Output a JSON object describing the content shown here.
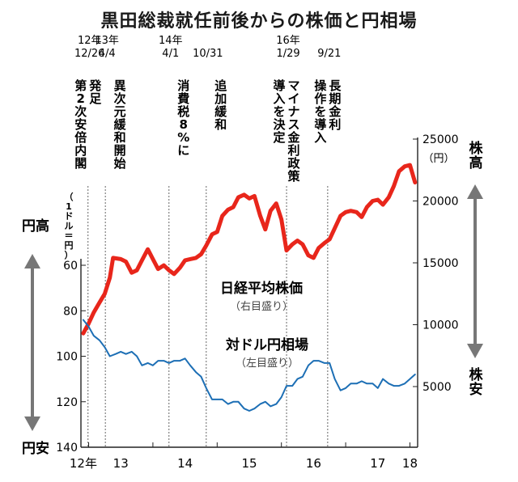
{
  "chart_data": {
    "type": "line",
    "title": "黒田総裁就任前後からの株価と円相場",
    "x_tick_labels": [
      "12年",
      "13",
      "14",
      "15",
      "16",
      "17",
      "18"
    ],
    "x_tick_values": [
      2012.917,
      2013.5,
      2014.5,
      2015.5,
      2016.5,
      2017.5,
      2018.0
    ],
    "left_axis": {
      "unit_label": "（1ドル＝円）",
      "ticks": [
        "60",
        "80",
        "100",
        "120",
        "140"
      ],
      "ylim": [
        140,
        40
      ],
      "top_label": "円高",
      "bottom_label": "円安"
    },
    "right_axis": {
      "unit_label": "（円）",
      "ticks": [
        "5000",
        "10000",
        "15000",
        "20000",
        "25000"
      ],
      "ylim": [
        5000,
        25000
      ],
      "top_label": "株高",
      "bottom_label": "株安"
    },
    "series": [
      {
        "name": "日経平均株価",
        "note": "（右目盛り）",
        "axis": "right",
        "color": "#e8261b",
        "points": [
          [
            2012.917,
            9300
          ],
          [
            2013.0,
            10100
          ],
          [
            2013.08,
            11000
          ],
          [
            2013.17,
            11800
          ],
          [
            2013.25,
            12500
          ],
          [
            2013.33,
            13800
          ],
          [
            2013.38,
            15400
          ],
          [
            2013.5,
            15300
          ],
          [
            2013.58,
            15100
          ],
          [
            2013.67,
            14200
          ],
          [
            2013.75,
            14400
          ],
          [
            2013.83,
            15200
          ],
          [
            2013.92,
            16100
          ],
          [
            2014.0,
            15300
          ],
          [
            2014.08,
            14500
          ],
          [
            2014.17,
            14800
          ],
          [
            2014.25,
            14400
          ],
          [
            2014.33,
            14100
          ],
          [
            2014.42,
            14600
          ],
          [
            2014.5,
            15200
          ],
          [
            2014.58,
            15300
          ],
          [
            2014.67,
            15400
          ],
          [
            2014.75,
            15700
          ],
          [
            2014.83,
            16400
          ],
          [
            2014.92,
            17300
          ],
          [
            2015.0,
            17500
          ],
          [
            2015.08,
            18800
          ],
          [
            2015.17,
            19300
          ],
          [
            2015.25,
            19500
          ],
          [
            2015.33,
            20300
          ],
          [
            2015.42,
            20500
          ],
          [
            2015.5,
            20200
          ],
          [
            2015.58,
            20400
          ],
          [
            2015.67,
            18800
          ],
          [
            2015.75,
            17700
          ],
          [
            2015.83,
            19200
          ],
          [
            2015.92,
            19800
          ],
          [
            2016.0,
            18500
          ],
          [
            2016.08,
            16000
          ],
          [
            2016.17,
            16500
          ],
          [
            2016.25,
            16800
          ],
          [
            2016.33,
            16500
          ],
          [
            2016.42,
            15600
          ],
          [
            2016.5,
            15400
          ],
          [
            2016.58,
            16200
          ],
          [
            2016.67,
            16600
          ],
          [
            2016.75,
            16900
          ],
          [
            2016.83,
            17800
          ],
          [
            2016.92,
            18800
          ],
          [
            2017.0,
            19100
          ],
          [
            2017.08,
            19200
          ],
          [
            2017.17,
            19100
          ],
          [
            2017.25,
            18700
          ],
          [
            2017.33,
            19500
          ],
          [
            2017.42,
            20000
          ],
          [
            2017.5,
            20100
          ],
          [
            2017.58,
            19700
          ],
          [
            2017.67,
            20300
          ],
          [
            2017.75,
            21200
          ],
          [
            2017.83,
            22400
          ],
          [
            2017.92,
            22800
          ],
          [
            2018.0,
            22900
          ],
          [
            2018.08,
            21500
          ]
        ]
      },
      {
        "name": "対ドル円相場",
        "note": "（左目盛り）",
        "axis": "left",
        "color": "#1d6fb5",
        "points": [
          [
            2012.917,
            84
          ],
          [
            2013.0,
            87
          ],
          [
            2013.08,
            91
          ],
          [
            2013.17,
            93
          ],
          [
            2013.25,
            96
          ],
          [
            2013.33,
            100
          ],
          [
            2013.42,
            99
          ],
          [
            2013.5,
            98
          ],
          [
            2013.58,
            99
          ],
          [
            2013.67,
            98
          ],
          [
            2013.75,
            100
          ],
          [
            2013.83,
            104
          ],
          [
            2013.92,
            103
          ],
          [
            2014.0,
            104
          ],
          [
            2014.08,
            102
          ],
          [
            2014.17,
            102
          ],
          [
            2014.25,
            103
          ],
          [
            2014.33,
            102
          ],
          [
            2014.42,
            102
          ],
          [
            2014.5,
            101
          ],
          [
            2014.58,
            104
          ],
          [
            2014.67,
            107
          ],
          [
            2014.75,
            109
          ],
          [
            2014.83,
            114
          ],
          [
            2014.92,
            119
          ],
          [
            2015.0,
            119
          ],
          [
            2015.08,
            119
          ],
          [
            2015.17,
            121
          ],
          [
            2015.25,
            120
          ],
          [
            2015.33,
            120
          ],
          [
            2015.42,
            123
          ],
          [
            2015.5,
            124
          ],
          [
            2015.58,
            123
          ],
          [
            2015.67,
            121
          ],
          [
            2015.75,
            120
          ],
          [
            2015.83,
            122
          ],
          [
            2015.92,
            121
          ],
          [
            2016.0,
            118
          ],
          [
            2016.08,
            113
          ],
          [
            2016.17,
            113
          ],
          [
            2016.25,
            110
          ],
          [
            2016.33,
            109
          ],
          [
            2016.42,
            104
          ],
          [
            2016.5,
            102
          ],
          [
            2016.58,
            102
          ],
          [
            2016.67,
            103
          ],
          [
            2016.75,
            103
          ],
          [
            2016.83,
            110
          ],
          [
            2016.92,
            115
          ],
          [
            2017.0,
            114
          ],
          [
            2017.08,
            112
          ],
          [
            2017.17,
            112
          ],
          [
            2017.25,
            111
          ],
          [
            2017.33,
            112
          ],
          [
            2017.42,
            112
          ],
          [
            2017.5,
            114
          ],
          [
            2017.58,
            110
          ],
          [
            2017.67,
            112
          ],
          [
            2017.75,
            113
          ],
          [
            2017.83,
            113
          ],
          [
            2017.92,
            112
          ],
          [
            2018.0,
            110
          ],
          [
            2018.08,
            108
          ]
        ]
      }
    ],
    "events": [
      {
        "date": "12年\n12/26",
        "text": "発足\n第2次安倍内閣",
        "x": 2012.99
      },
      {
        "date": "13年\n4/4",
        "text": "異次元緩和開始",
        "x": 2013.26
      },
      {
        "date": "14年\n4/1",
        "text": "消費税8%に",
        "x": 2014.25
      },
      {
        "date": "10/31",
        "text": "追加緩和",
        "x": 2014.83
      },
      {
        "date": "16年\n1/29",
        "text": "マイナス金利政策\n導入を決定",
        "x": 2016.08
      },
      {
        "date": "9/21",
        "text": "長期金利\n操作を導入",
        "x": 2016.72
      }
    ],
    "grid": false
  }
}
